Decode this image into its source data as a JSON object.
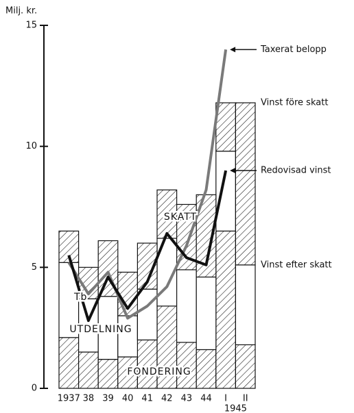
{
  "chart_data": {
    "type": "bar",
    "stacked": true,
    "y_label": "Milj. kr.",
    "categories": [
      "1937",
      "38",
      "39",
      "40",
      "41",
      "42",
      "43",
      "44",
      "I",
      "II"
    ],
    "x_group_label": "1945",
    "ylim": [
      0,
      15
    ],
    "yticks": [
      0,
      5,
      10,
      15
    ],
    "series": [
      {
        "name": "FONDERING",
        "type": "bar",
        "pattern": "hatch",
        "values": [
          2.1,
          1.5,
          1.2,
          1.3,
          2.0,
          3.4,
          1.9,
          1.6,
          6.5,
          1.8
        ]
      },
      {
        "name": "UTDELNING",
        "type": "bar",
        "pattern": "none",
        "values": [
          3.1,
          2.2,
          2.6,
          1.7,
          2.1,
          2.8,
          3.0,
          3.0,
          3.3,
          3.3
        ]
      },
      {
        "name": "SKATT",
        "type": "bar",
        "pattern": "hatch",
        "values": [
          1.3,
          1.3,
          2.3,
          1.8,
          1.9,
          2.0,
          2.7,
          3.4,
          2.0,
          6.7
        ]
      },
      {
        "name": "Taxerat belopp",
        "type": "line",
        "color": "#7a7a7a",
        "values": [
          5.2,
          3.9,
          4.8,
          2.9,
          3.4,
          4.2,
          5.9,
          8.2,
          14.0,
          null
        ]
      },
      {
        "name": "Redovisad vinst",
        "type": "line",
        "color": "#111111",
        "values": [
          5.5,
          2.8,
          4.6,
          3.3,
          4.4,
          6.4,
          5.4,
          5.1,
          9.0,
          null
        ]
      }
    ],
    "annotations": [
      "Vinst före skatt",
      "Vinst efter skatt",
      "Tb"
    ]
  }
}
